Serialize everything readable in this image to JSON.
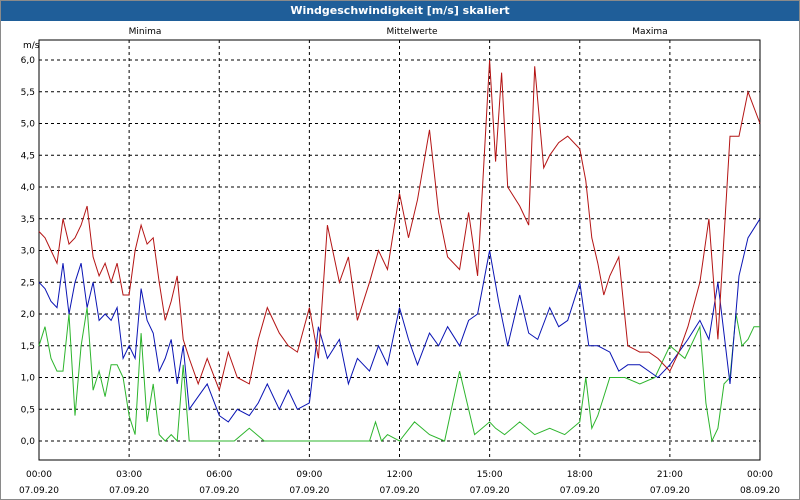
{
  "window": {
    "title": "Windgeschwindigkeit [m/s] skaliert"
  },
  "chart_data": {
    "type": "line",
    "title": "Windgeschwindigkeit [m/s] skaliert",
    "ylabel": "m/s",
    "ylim": [
      0,
      6.0
    ],
    "yticks": [
      "0,0",
      "0,5",
      "1,0",
      "1,5",
      "2,0",
      "2,5",
      "3,0",
      "3,5",
      "4,0",
      "4,5",
      "5,0",
      "5,5",
      "6,0"
    ],
    "xticks": [
      {
        "time": "00:00",
        "date": "07.09.20"
      },
      {
        "time": "03:00",
        "date": "07.09.20"
      },
      {
        "time": "06:00",
        "date": "07.09.20"
      },
      {
        "time": "09:00",
        "date": "07.09.20"
      },
      {
        "time": "12:00",
        "date": "07.09.20"
      },
      {
        "time": "15:00",
        "date": "07.09.20"
      },
      {
        "time": "18:00",
        "date": "07.09.20"
      },
      {
        "time": "21:00",
        "date": "07.09.20"
      },
      {
        "time": "00:00",
        "date": "08.09.20"
      }
    ],
    "xlim_hours": [
      0,
      24
    ],
    "grid": true,
    "series": [
      {
        "name": "Minima",
        "color": "#2db52d",
        "legend_pos": "left",
        "x": [
          0,
          0.2,
          0.4,
          0.6,
          0.8,
          1.0,
          1.2,
          1.4,
          1.6,
          1.8,
          2.0,
          2.2,
          2.4,
          2.6,
          2.8,
          3.0,
          3.2,
          3.4,
          3.6,
          3.8,
          4.0,
          4.2,
          4.4,
          4.6,
          4.8,
          5.0,
          5.5,
          6.0,
          6.5,
          7.0,
          7.5,
          8.0,
          8.5,
          9.0,
          9.5,
          10.0,
          10.5,
          11.0,
          11.2,
          11.4,
          11.6,
          12.0,
          12.5,
          13.0,
          13.5,
          14.0,
          14.5,
          15.0,
          15.2,
          15.5,
          16.0,
          16.5,
          17.0,
          17.5,
          18.0,
          18.2,
          18.4,
          18.6,
          18.8,
          19.0,
          19.5,
          20.0,
          20.5,
          21.0,
          21.5,
          22.0,
          22.2,
          22.4,
          22.6,
          22.8,
          23.0,
          23.2,
          23.4,
          23.6,
          23.8,
          24.0
        ],
        "y": [
          1.5,
          1.8,
          1.3,
          1.1,
          1.1,
          2.0,
          0.4,
          1.5,
          2.1,
          0.8,
          1.1,
          0.7,
          1.2,
          1.2,
          1.0,
          0.4,
          0.1,
          1.7,
          0.3,
          0.9,
          0.1,
          0.0,
          0.1,
          0.0,
          1.2,
          0.0,
          0.0,
          0.0,
          0.0,
          0.2,
          0.0,
          0.0,
          0.0,
          0.0,
          0.0,
          0.0,
          0.0,
          0.0,
          0.3,
          0.0,
          0.1,
          0.0,
          0.3,
          0.1,
          0.0,
          1.1,
          0.1,
          0.3,
          0.2,
          0.1,
          0.3,
          0.1,
          0.2,
          0.1,
          0.3,
          1.0,
          0.2,
          0.4,
          0.7,
          1.0,
          1.0,
          0.9,
          1.0,
          1.5,
          1.3,
          1.8,
          0.6,
          0.0,
          0.2,
          0.9,
          1.0,
          2.0,
          1.5,
          1.6,
          1.8,
          1.8
        ]
      },
      {
        "name": "Mittelwerte",
        "color": "#0a14b4",
        "legend_pos": "center",
        "x": [
          0,
          0.2,
          0.4,
          0.6,
          0.8,
          1.0,
          1.2,
          1.4,
          1.6,
          1.8,
          2.0,
          2.2,
          2.4,
          2.6,
          2.8,
          3.0,
          3.2,
          3.4,
          3.6,
          3.8,
          4.0,
          4.2,
          4.4,
          4.6,
          4.8,
          5.0,
          5.3,
          5.6,
          6.0,
          6.3,
          6.6,
          7.0,
          7.3,
          7.6,
          8.0,
          8.3,
          8.6,
          9.0,
          9.3,
          9.6,
          10.0,
          10.3,
          10.6,
          11.0,
          11.3,
          11.6,
          12.0,
          12.3,
          12.6,
          13.0,
          13.3,
          13.6,
          14.0,
          14.3,
          14.6,
          15.0,
          15.3,
          15.6,
          16.0,
          16.3,
          16.6,
          17.0,
          17.3,
          17.6,
          18.0,
          18.3,
          18.6,
          19.0,
          19.3,
          19.6,
          20.0,
          20.3,
          20.6,
          21.0,
          21.3,
          21.6,
          22.0,
          22.3,
          22.6,
          23.0,
          23.3,
          23.6,
          24.0
        ],
        "y": [
          2.5,
          2.4,
          2.2,
          2.1,
          2.8,
          2.0,
          2.5,
          2.8,
          2.1,
          2.5,
          1.9,
          2.0,
          1.9,
          2.1,
          1.3,
          1.5,
          1.3,
          2.4,
          1.9,
          1.7,
          1.1,
          1.3,
          1.6,
          0.9,
          1.5,
          0.5,
          0.7,
          0.9,
          0.4,
          0.3,
          0.5,
          0.4,
          0.6,
          0.9,
          0.5,
          0.8,
          0.5,
          0.6,
          1.8,
          1.3,
          1.6,
          0.9,
          1.3,
          1.1,
          1.5,
          1.2,
          2.1,
          1.6,
          1.2,
          1.7,
          1.5,
          1.8,
          1.5,
          1.9,
          2.0,
          3.0,
          2.2,
          1.5,
          2.3,
          1.7,
          1.6,
          2.1,
          1.8,
          1.9,
          2.5,
          1.5,
          1.5,
          1.4,
          1.1,
          1.2,
          1.2,
          1.1,
          1.0,
          1.2,
          1.4,
          1.6,
          1.9,
          1.6,
          2.5,
          0.9,
          2.6,
          3.2,
          3.5
        ]
      },
      {
        "name": "Maxima",
        "color": "#b41414",
        "legend_pos": "right",
        "x": [
          0,
          0.2,
          0.4,
          0.6,
          0.8,
          1.0,
          1.2,
          1.4,
          1.6,
          1.8,
          2.0,
          2.2,
          2.4,
          2.6,
          2.8,
          3.0,
          3.2,
          3.4,
          3.6,
          3.8,
          4.0,
          4.2,
          4.4,
          4.6,
          4.8,
          5.0,
          5.3,
          5.6,
          6.0,
          6.3,
          6.6,
          7.0,
          7.3,
          7.6,
          8.0,
          8.3,
          8.6,
          9.0,
          9.3,
          9.6,
          10.0,
          10.3,
          10.6,
          11.0,
          11.3,
          11.6,
          12.0,
          12.3,
          12.6,
          13.0,
          13.3,
          13.6,
          14.0,
          14.3,
          14.6,
          15.0,
          15.2,
          15.4,
          15.6,
          16.0,
          16.3,
          16.5,
          16.8,
          17.0,
          17.3,
          17.6,
          18.0,
          18.2,
          18.4,
          18.6,
          18.8,
          19.0,
          19.3,
          19.6,
          20.0,
          20.3,
          20.6,
          21.0,
          21.3,
          21.6,
          22.0,
          22.3,
          22.6,
          23.0,
          23.3,
          23.6,
          24.0
        ],
        "y": [
          3.3,
          3.2,
          3.0,
          2.8,
          3.5,
          3.1,
          3.2,
          3.4,
          3.7,
          2.9,
          2.6,
          2.8,
          2.5,
          2.8,
          2.3,
          2.3,
          3.0,
          3.4,
          3.1,
          3.2,
          2.5,
          1.9,
          2.2,
          2.6,
          1.6,
          1.3,
          0.9,
          1.3,
          0.8,
          1.4,
          1.0,
          0.9,
          1.6,
          2.1,
          1.7,
          1.5,
          1.4,
          2.1,
          1.3,
          3.4,
          2.5,
          2.9,
          1.9,
          2.5,
          3.0,
          2.7,
          3.9,
          3.2,
          3.8,
          4.9,
          3.6,
          2.9,
          2.7,
          3.6,
          2.6,
          6.0,
          4.4,
          5.8,
          4.0,
          3.7,
          3.4,
          5.9,
          4.3,
          4.5,
          4.7,
          4.8,
          4.6,
          4.1,
          3.2,
          2.8,
          2.3,
          2.6,
          2.9,
          1.5,
          1.4,
          1.4,
          1.3,
          1.1,
          1.4,
          1.8,
          2.5,
          3.5,
          1.6,
          4.8,
          4.8,
          5.5,
          5.0
        ]
      }
    ]
  }
}
